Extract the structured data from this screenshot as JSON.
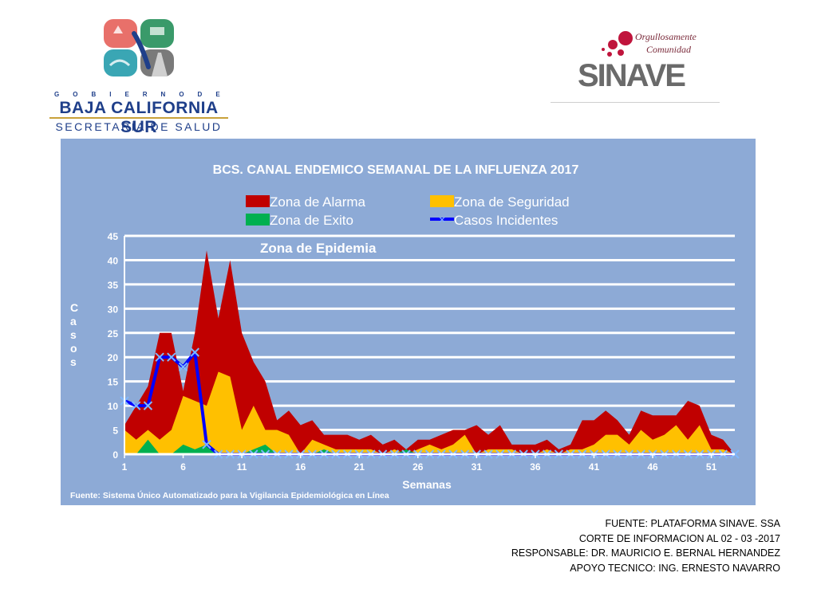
{
  "header": {
    "gov_spaced": "GOBIERNODE",
    "gov_state": "BAJA CALIFORNIA SUR",
    "gov_dept": "SECRETARÍA DE SALUD",
    "sinave_tag1": "Orgullosamente",
    "sinave_tag2": "Comunidad",
    "sinave_word": "SINAVE",
    "colors": {
      "gov_blue": "#1f3f8a",
      "sinave_red": "#c0143c",
      "sinave_gray": "#6a6a6a"
    }
  },
  "chart_data": {
    "type": "area",
    "title": "BCS. CANAL ENDEMICO SEMANAL DE LA INFLUENZA 2017",
    "xlabel": "Semanas",
    "ylabel": "Casos",
    "annotation": "Zona de Epidemia",
    "source": "Fuente: Sistema Único Automatizado para la Vigilancia Epidemiológica en Línea",
    "ylim": [
      0,
      45
    ],
    "yticks": [
      0,
      5,
      10,
      15,
      20,
      25,
      30,
      35,
      40,
      45
    ],
    "xlim": [
      1,
      53
    ],
    "xticks": [
      1,
      6,
      11,
      16,
      21,
      26,
      31,
      36,
      41,
      46,
      51
    ],
    "grid": true,
    "legend_position": "top",
    "x": [
      1,
      2,
      3,
      4,
      5,
      6,
      7,
      8,
      9,
      10,
      11,
      12,
      13,
      14,
      15,
      16,
      17,
      18,
      19,
      20,
      21,
      22,
      23,
      24,
      25,
      26,
      27,
      28,
      29,
      30,
      31,
      32,
      33,
      34,
      35,
      36,
      37,
      38,
      39,
      40,
      41,
      42,
      43,
      44,
      45,
      46,
      47,
      48,
      49,
      50,
      51,
      52,
      53
    ],
    "series": [
      {
        "name": "Zona de Alarma",
        "kind": "area",
        "color": "#c00000",
        "values": [
          6,
          10,
          14,
          25,
          25,
          13,
          25,
          42,
          28,
          40,
          25,
          19,
          15,
          7,
          9,
          6,
          7,
          4,
          4,
          4,
          3,
          4,
          2,
          3,
          1,
          3,
          3,
          4,
          5,
          5,
          6,
          4,
          6,
          2,
          2,
          2,
          3,
          1,
          2,
          7,
          7,
          9,
          7,
          4,
          9,
          8,
          8,
          8,
          11,
          10,
          4,
          3,
          0
        ]
      },
      {
        "name": "Zona de Seguridad",
        "kind": "area",
        "color": "#ffc000",
        "values": [
          5,
          3,
          5,
          3,
          5,
          12,
          11,
          10,
          17,
          16,
          5,
          10,
          5,
          5,
          4,
          0,
          3,
          2,
          1,
          1,
          1,
          1,
          0,
          1,
          0,
          1,
          2,
          1,
          2,
          4,
          0,
          1,
          1,
          1,
          0,
          0,
          1,
          0,
          1,
          1,
          2,
          4,
          4,
          2,
          5,
          3,
          4,
          6,
          3,
          6,
          1,
          1,
          0
        ]
      },
      {
        "name": "Zona de Exito",
        "kind": "area",
        "color": "#00b050",
        "values": [
          0,
          0,
          3,
          0,
          0,
          2,
          1,
          2,
          0,
          0,
          0,
          1,
          2,
          0,
          0,
          0,
          0,
          1,
          0,
          0,
          0,
          0,
          0,
          0,
          1,
          0,
          0,
          0,
          0,
          0,
          0,
          0,
          0,
          0,
          0,
          0,
          0,
          0,
          0,
          0,
          0,
          0,
          0,
          0,
          0,
          0,
          0,
          0,
          0,
          0,
          0,
          0,
          0
        ]
      },
      {
        "name": "Casos Incidentes",
        "kind": "line",
        "color": "#0000ff",
        "values": [
          11,
          10,
          10,
          20,
          20,
          18,
          21,
          2,
          0,
          0,
          0,
          0,
          0,
          0,
          0,
          0,
          0,
          0,
          0,
          0,
          0,
          0,
          0,
          0,
          0,
          0,
          0,
          0,
          0,
          0,
          0,
          0,
          0,
          0,
          0,
          0,
          0,
          0,
          0,
          0,
          0,
          0,
          0,
          0,
          0,
          0,
          0,
          0,
          0,
          0,
          0,
          0,
          0
        ]
      }
    ]
  },
  "footer": {
    "line1": "FUENTE: PLATAFORMA SINAVE. SSA",
    "line2": "CORTE DE INFORMACION AL  02 - 03 -2017",
    "line3": "RESPONSABLE: DR. MAURICIO E. BERNAL HERNANDEZ",
    "line4": "APOYO TECNICO: ING. ERNESTO NAVARRO"
  }
}
